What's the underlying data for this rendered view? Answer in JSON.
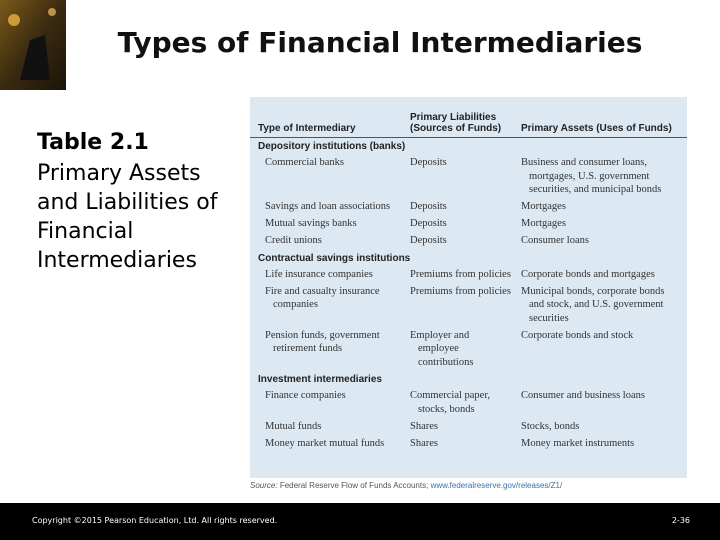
{
  "header": {
    "title": "Types of Financial Intermediaries"
  },
  "caption": {
    "label": "Table 2.1",
    "text": "Primary Assets and Liabilities of Financial Intermediaries"
  },
  "table": {
    "columns": [
      "Type of Intermediary",
      "Primary Liabilities (Sources of Funds)",
      "Primary Assets (Uses of Funds)"
    ],
    "sections": [
      {
        "name": "Depository institutions (banks)",
        "rows": [
          [
            "Commercial banks",
            "Deposits",
            "Business and consumer loans, mortgages, U.S. government securities, and municipal bonds"
          ],
          [
            "Savings and loan associations",
            "Deposits",
            "Mortgages"
          ],
          [
            "Mutual savings banks",
            "Deposits",
            "Mortgages"
          ],
          [
            "Credit unions",
            "Deposits",
            "Consumer loans"
          ]
        ]
      },
      {
        "name": "Contractual savings institutions",
        "rows": [
          [
            "Life insurance companies",
            "Premiums from policies",
            "Corporate bonds and mortgages"
          ],
          [
            "Fire and casualty insurance companies",
            "Premiums from policies",
            "Municipal bonds, corporate bonds and stock, and U.S. government securities"
          ],
          [
            "Pension funds, government retirement funds",
            "Employer and employee contributions",
            "Corporate bonds and stock"
          ]
        ]
      },
      {
        "name": "Investment intermediaries",
        "rows": [
          [
            "Finance companies",
            "Commercial paper, stocks, bonds",
            "Consumer and business loans"
          ],
          [
            "Mutual funds",
            "Shares",
            "Stocks, bonds"
          ],
          [
            "Money market mutual funds",
            "Shares",
            "Money market instruments"
          ]
        ]
      }
    ],
    "source_label": "Source:",
    "source": "Federal Reserve Flow of Funds Accounts;",
    "source_link": "www.federalreserve.gov/releases/Z1/"
  },
  "footer": {
    "copyright": "Copyright ©2015 Pearson Education, Ltd. All rights reserved.",
    "page": "2-36"
  }
}
